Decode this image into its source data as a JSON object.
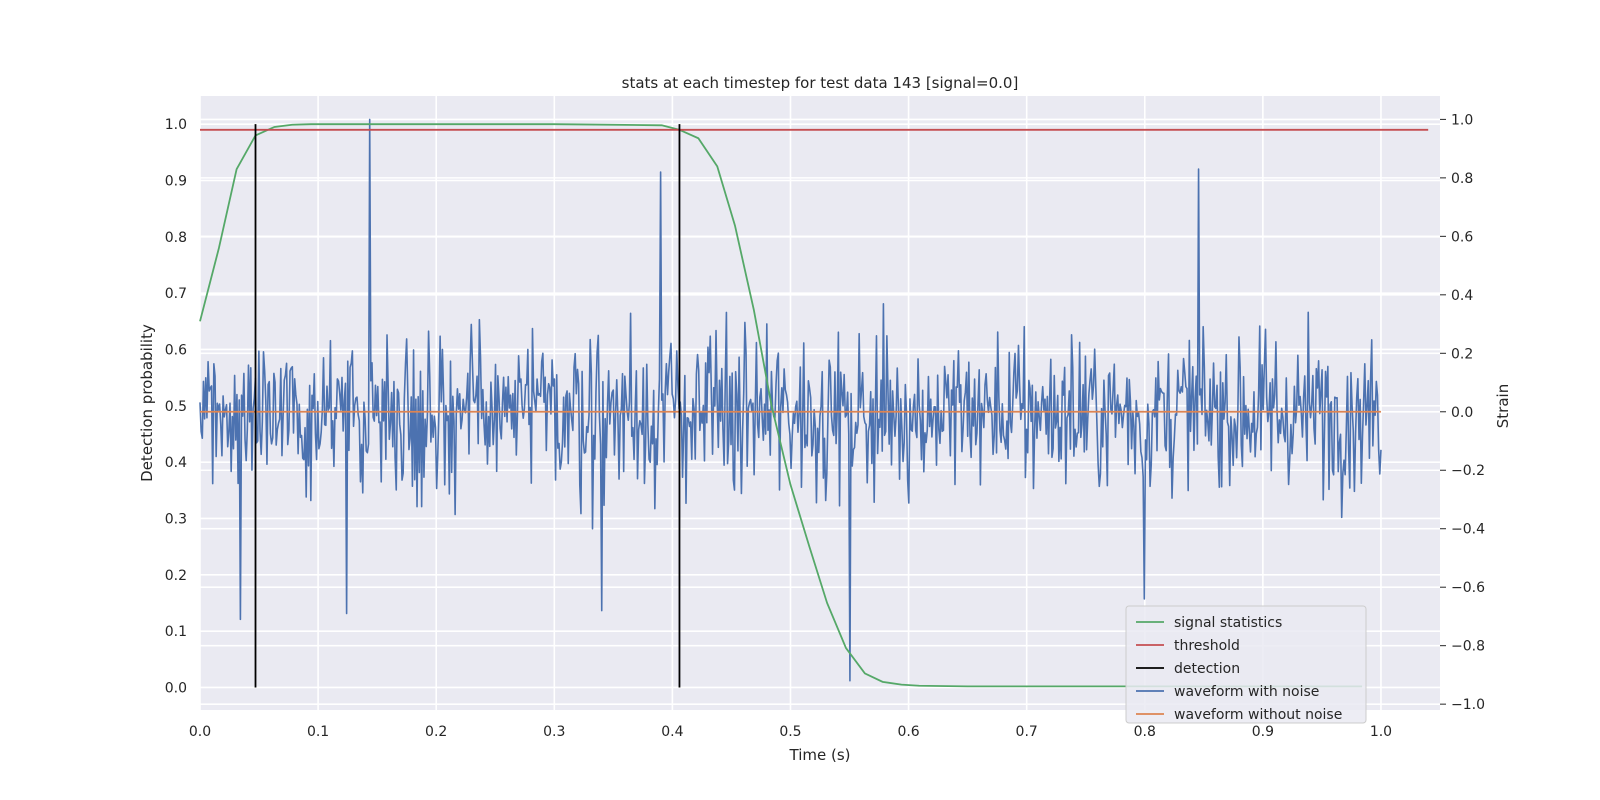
{
  "chart_data": {
    "type": "line",
    "title": "stats at each timestep for test data 143 [signal=0.0]",
    "xlabel": "Time (s)",
    "ylabel_left": "Detection probability",
    "ylabel_right": "Strain",
    "xlim": [
      0.0,
      1.05
    ],
    "ylim_left": [
      -0.04,
      1.05
    ],
    "ylim_right": [
      -1.02,
      1.08
    ],
    "x_ticks": [
      "0.0",
      "0.1",
      "0.2",
      "0.3",
      "0.4",
      "0.5",
      "0.6",
      "0.7",
      "0.8",
      "0.9",
      "1.0"
    ],
    "y_ticks_left": [
      "0.0",
      "0.1",
      "0.2",
      "0.3",
      "0.4",
      "0.5",
      "0.6",
      "0.7",
      "0.8",
      "0.9",
      "1.0"
    ],
    "y_ticks_right": [
      "−1.0",
      "−0.8",
      "−0.6",
      "−0.4",
      "−0.2",
      "0.0",
      "0.2",
      "0.4",
      "0.6",
      "0.8",
      "1.0"
    ],
    "grid": true,
    "legend_position": "lower-right",
    "colors": {
      "signal_statistics": "#55a868",
      "threshold": "#c44e52",
      "detection": "#000000",
      "waveform_with_noise": "#4c72b0",
      "waveform_without_noise": "#dd8452",
      "plot_background": "#eaeaf2"
    },
    "series": [
      {
        "name": "signal statistics",
        "axis": "left",
        "x": [
          0.0,
          0.016,
          0.031,
          0.047,
          0.063,
          0.078,
          0.094,
          0.2,
          0.3,
          0.391,
          0.406,
          0.422,
          0.438,
          0.453,
          0.469,
          0.484,
          0.5,
          0.516,
          0.531,
          0.547,
          0.563,
          0.578,
          0.594,
          0.609,
          0.65,
          0.7,
          0.8,
          0.9,
          0.984
        ],
        "y": [
          0.65,
          0.78,
          0.92,
          0.98,
          0.995,
          0.999,
          1.0,
          1.0,
          1.0,
          0.998,
          0.99,
          0.975,
          0.925,
          0.82,
          0.67,
          0.5,
          0.36,
          0.25,
          0.15,
          0.07,
          0.025,
          0.01,
          0.005,
          0.003,
          0.002,
          0.002,
          0.002,
          0.002,
          0.002
        ]
      },
      {
        "name": "threshold",
        "axis": "left",
        "x": [
          0.0,
          1.04
        ],
        "y": [
          0.99,
          0.99
        ]
      },
      {
        "name": "detection",
        "axis": "left",
        "events_x": [
          0.047,
          0.406
        ],
        "y_range": [
          0.0,
          1.0
        ]
      },
      {
        "name": "waveform with noise",
        "axis": "right",
        "x_range": [
          0.0,
          1.0
        ],
        "n_points": 1024,
        "value_range": [
          -1.0,
          1.0
        ],
        "notable_points": [
          {
            "x": 0.144,
            "y": 1.0
          },
          {
            "x": 0.39,
            "y": 0.82
          },
          {
            "x": 0.55,
            "y": -0.92
          },
          {
            "x": 0.846,
            "y": 0.83
          },
          {
            "x": 0.034,
            "y": -0.71
          },
          {
            "x": 0.124,
            "y": -0.69
          },
          {
            "x": 0.34,
            "y": -0.68
          },
          {
            "x": 0.8,
            "y": -0.64
          }
        ]
      },
      {
        "name": "waveform without noise",
        "axis": "right",
        "x": [
          0.0,
          1.0
        ],
        "y": [
          0.0,
          0.0
        ]
      }
    ]
  }
}
